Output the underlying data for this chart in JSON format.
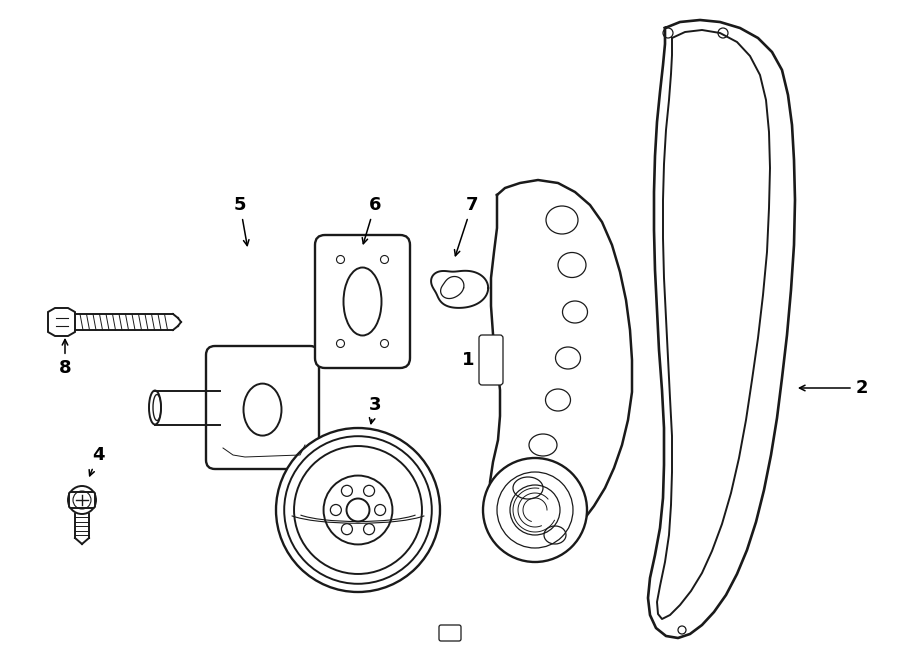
{
  "bg_color": "#ffffff",
  "line_color": "#1a1a1a",
  "lw": 1.4,
  "fig_w": 9.0,
  "fig_h": 6.61,
  "labels": {
    "1": [
      0.497,
      0.435,
      -0.018,
      0.0
    ],
    "2": [
      0.955,
      0.418,
      -0.03,
      0.0
    ],
    "3": [
      0.388,
      0.24,
      0.0,
      0.038
    ],
    "4": [
      0.098,
      0.215,
      0.0,
      0.038
    ],
    "5": [
      0.235,
      0.57,
      0.0,
      -0.038
    ],
    "6": [
      0.375,
      0.575,
      0.0,
      -0.038
    ],
    "7": [
      0.47,
      0.578,
      0.0,
      -0.038
    ],
    "8": [
      0.068,
      0.395,
      0.0,
      0.038
    ]
  }
}
